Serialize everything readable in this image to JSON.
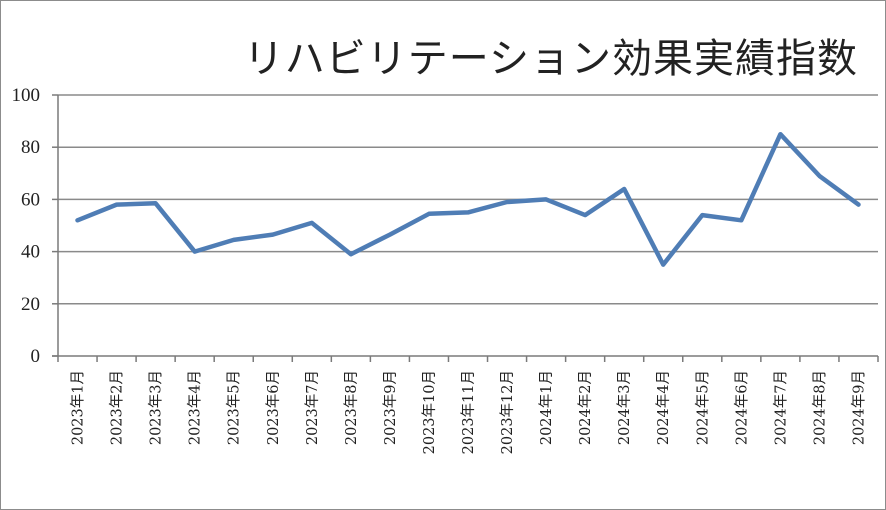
{
  "chart_data": {
    "type": "line",
    "title": "リハビリテーション効果実績指数",
    "xlabel": "",
    "ylabel": "",
    "ylim": [
      0,
      100
    ],
    "yticks": [
      0,
      20,
      40,
      60,
      80,
      100
    ],
    "grid": true,
    "legend": "none",
    "categories": [
      "2023年1月",
      "2023年2月",
      "2023年3月",
      "2023年4月",
      "2023年5月",
      "2023年6月",
      "2023年7月",
      "2023年8月",
      "2023年9月",
      "2023年10月",
      "2023年11月",
      "2023年12月",
      "2024年1月",
      "2024年2月",
      "2024年3月",
      "2024年4月",
      "2024年5月",
      "2024年6月",
      "2024年7月",
      "2024年8月",
      "2024年9月"
    ],
    "series": [
      {
        "values": [
          52,
          58,
          58.5,
          40,
          44.5,
          46.5,
          51,
          39,
          46.5,
          54.5,
          55,
          59,
          60,
          54,
          64,
          35,
          54,
          52,
          85,
          69,
          58
        ],
        "color": "#4f7db5"
      }
    ]
  }
}
